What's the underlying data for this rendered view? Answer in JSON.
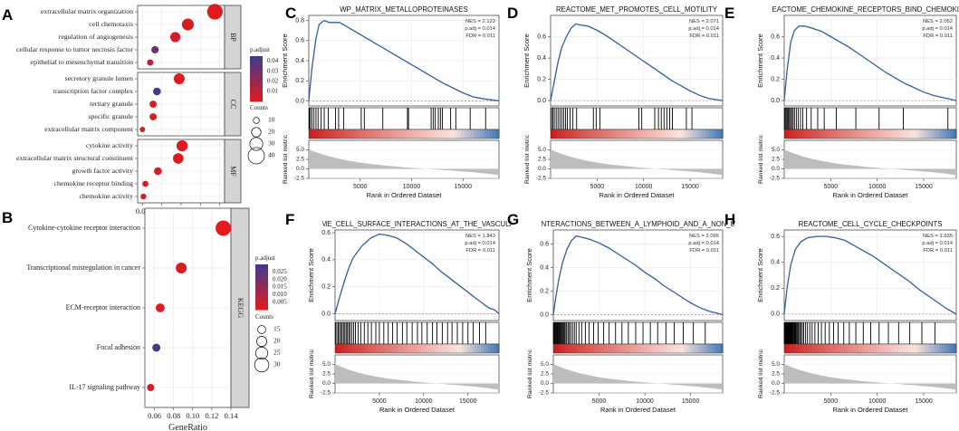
{
  "figure": {
    "panel_letters": [
      "A",
      "B",
      "C",
      "D",
      "E",
      "F",
      "G",
      "H"
    ]
  },
  "chart_data": [
    {
      "id": "A",
      "type": "scatter",
      "subtype": "dot-plot",
      "title": "",
      "xlabel": "GeneRatio",
      "ylabel": "",
      "xlim": [
        0.015,
        0.105
      ],
      "xticks": [
        0.02,
        0.04,
        0.06,
        0.08,
        0.1
      ],
      "xtick_labels": [
        "0.02",
        "0.04",
        "0.06",
        "0.08",
        "0.10"
      ],
      "colorbar": {
        "title": "p.adjust",
        "range": [
          0.0,
          0.045
        ],
        "ticks": [
          0.01,
          0.02,
          0.03,
          0.04
        ],
        "tick_labels": [
          "0.01",
          "0.02",
          "0.03",
          "0.04"
        ],
        "low_color": "#e41a1c",
        "high_color": "#3d3c8f"
      },
      "size_legend": {
        "title": "Counts",
        "values": [
          10,
          20,
          30,
          40
        ]
      },
      "facets": [
        {
          "label": "BP",
          "points": [
            {
              "term": "extracellular matrix organization",
              "ratio": 0.095,
              "count": 38,
              "padj": 0.001
            },
            {
              "term": "cell chemotaxis",
              "ratio": 0.067,
              "count": 27,
              "padj": 0.003
            },
            {
              "term": "regulation of angiogenesis",
              "ratio": 0.054,
              "count": 22,
              "padj": 0.006
            },
            {
              "term": "cellular response to tumor necrosis factor",
              "ratio": 0.033,
              "count": 14,
              "padj": 0.032
            },
            {
              "term": "epithelial to mesenchymal transition",
              "ratio": 0.028,
              "count": 11,
              "padj": 0.012
            }
          ]
        },
        {
          "label": "CC",
          "points": [
            {
              "term": "secretory granule lumen",
              "ratio": 0.058,
              "count": 24,
              "padj": 0.002
            },
            {
              "term": "transcription factor complex",
              "ratio": 0.035,
              "count": 15,
              "padj": 0.043
            },
            {
              "term": "tertiary granule",
              "ratio": 0.031,
              "count": 13,
              "padj": 0.004
            },
            {
              "term": "specific granule",
              "ratio": 0.031,
              "count": 13,
              "padj": 0.004
            },
            {
              "term": "extracellular matrix component",
              "ratio": 0.02,
              "count": 8,
              "padj": 0.006
            }
          ]
        },
        {
          "label": "MF",
          "points": [
            {
              "term": "cytokine activity",
              "ratio": 0.061,
              "count": 25,
              "padj": 0.002
            },
            {
              "term": "extracellular matrix structural constituent",
              "ratio": 0.057,
              "count": 23,
              "padj": 0.003
            },
            {
              "term": "growth factor activity",
              "ratio": 0.036,
              "count": 15,
              "padj": 0.005
            },
            {
              "term": "chemokine receptor binding",
              "ratio": 0.023,
              "count": 10,
              "padj": 0.004
            },
            {
              "term": "chemokine activity",
              "ratio": 0.021,
              "count": 9,
              "padj": 0.006
            }
          ]
        }
      ]
    },
    {
      "id": "B",
      "type": "scatter",
      "subtype": "dot-plot",
      "title": "",
      "xlabel": "GeneRatio",
      "ylabel": "",
      "xlim": [
        0.05,
        0.14
      ],
      "xticks": [
        0.06,
        0.08,
        0.1,
        0.12,
        0.14
      ],
      "xtick_labels": [
        "0.06",
        "0.08",
        "0.10",
        "0.12",
        "0.14"
      ],
      "colorbar": {
        "title": "p.adjust",
        "range": [
          0.0,
          0.03
        ],
        "ticks": [
          0.005,
          0.01,
          0.015,
          0.02,
          0.025
        ],
        "tick_labels": [
          "0.005",
          "0.010",
          "0.015",
          "0.020",
          "0.025"
        ],
        "low_color": "#e41a1c",
        "high_color": "#3d3c8f"
      },
      "size_legend": {
        "title": "Counts",
        "values": [
          15,
          20,
          25,
          30
        ]
      },
      "facets": [
        {
          "label": "KEGG",
          "points": [
            {
              "term": "Cytokine-cytokine receptor interaction",
              "ratio": 0.132,
              "count": 33,
              "padj": 0.0005
            },
            {
              "term": "Transcriptional misregulation in cancer",
              "ratio": 0.088,
              "count": 22,
              "padj": 0.002
            },
            {
              "term": "ECM-receptor interaction",
              "ratio": 0.066,
              "count": 17,
              "padj": 0.001
            },
            {
              "term": "Focal adhesion",
              "ratio": 0.062,
              "count": 15,
              "padj": 0.028
            },
            {
              "term": "IL-17 signaling pathway",
              "ratio": 0.056,
              "count": 13,
              "padj": 0.003
            }
          ]
        }
      ]
    },
    {
      "id": "C",
      "type": "line",
      "subtype": "gsea",
      "title": "WP_MATRIX_METALLOPROTEINASES",
      "stats": [
        "NES = 2.122",
        "p.adj = 0.014",
        "FDR = 0.011"
      ],
      "ylabel": "Enrichment Score",
      "ylim": [
        -0.05,
        0.85
      ],
      "yticks": [
        0.0,
        0.2,
        0.4,
        0.6,
        0.8
      ],
      "ytick_labels": [
        "0.0",
        "0.2",
        "0.4",
        "0.6",
        "0.8"
      ],
      "es_curve": {
        "x": [
          0,
          300,
          700,
          1000,
          1500,
          2000,
          3000,
          4000,
          5000,
          6000,
          7000,
          8000,
          9000,
          10000,
          11000,
          12000,
          13000,
          14000,
          15000,
          16000,
          17000,
          17800,
          18500
        ],
        "y": [
          0.0,
          0.32,
          0.62,
          0.76,
          0.8,
          0.78,
          0.78,
          0.72,
          0.66,
          0.6,
          0.54,
          0.48,
          0.42,
          0.36,
          0.3,
          0.24,
          0.18,
          0.13,
          0.08,
          0.04,
          0.02,
          0.01,
          0.0
        ]
      },
      "hits": [
        50,
        150,
        300,
        500,
        700,
        900,
        1200,
        1500,
        1900,
        2600,
        2900,
        3400,
        5100,
        5400,
        7200,
        9600,
        9700,
        11900,
        12100,
        12300,
        12600,
        12800,
        13000,
        13800,
        14300,
        15700,
        17200
      ],
      "xlabel": "Rank in Ordered Dataset",
      "xlim": [
        0,
        18500
      ],
      "xticks": [
        5000,
        10000,
        15000
      ],
      "xtick_labels": [
        "5000",
        "10000",
        "15000"
      ],
      "metric_label": "Ranked list metric",
      "metric_ylim": [
        -2.5,
        7.5
      ],
      "metric_yticks": [
        -2.5,
        0.0,
        2.5,
        5.0
      ],
      "metric_ytick_labels": [
        "-2.5",
        "0.0",
        "2.5",
        "5.0"
      ]
    },
    {
      "id": "D",
      "type": "line",
      "subtype": "gsea",
      "title": "REACTOME_MET_PROMOTES_CELL_MOTILITY",
      "stats": [
        "NES = 2.071",
        "p.adj = 0.014",
        "FDR = 0.011"
      ],
      "ylabel": "Enrichment Score",
      "ylim": [
        -0.05,
        0.8
      ],
      "yticks": [
        0.0,
        0.2,
        0.4,
        0.6
      ],
      "ytick_labels": [
        "0.0",
        "0.2",
        "0.4",
        "0.6"
      ],
      "es_curve": {
        "x": [
          0,
          400,
          800,
          1200,
          1700,
          2200,
          2700,
          3200,
          4000,
          5000,
          6000,
          7000,
          8000,
          9000,
          10000,
          11000,
          12000,
          13000,
          14000,
          15000,
          16000,
          17000,
          18500
        ],
        "y": [
          0.0,
          0.18,
          0.36,
          0.5,
          0.6,
          0.68,
          0.72,
          0.71,
          0.7,
          0.66,
          0.61,
          0.55,
          0.49,
          0.43,
          0.37,
          0.31,
          0.25,
          0.19,
          0.14,
          0.09,
          0.05,
          0.02,
          0.0
        ]
      },
      "hits": [
        100,
        250,
        400,
        600,
        800,
        1000,
        1200,
        1400,
        1600,
        1800,
        2100,
        2400,
        2800,
        4600,
        4900,
        5300,
        9500,
        9800,
        11200,
        11600,
        11900,
        12200,
        12500,
        12800,
        13100,
        14600,
        15200
      ],
      "xlabel": "Rank in Ordered Dataset",
      "xlim": [
        0,
        18500
      ],
      "xticks": [
        5000,
        10000,
        15000
      ],
      "xtick_labels": [
        "5000",
        "10000",
        "15000"
      ],
      "metric_label": "Ranked list metric",
      "metric_ylim": [
        -2.5,
        7.5
      ],
      "metric_yticks": [
        -2.5,
        0.0,
        2.5,
        5.0
      ],
      "metric_ytick_labels": [
        "-2.5",
        "0.0",
        "2.5",
        "5.0"
      ]
    },
    {
      "id": "E",
      "type": "line",
      "subtype": "gsea",
      "title": "REACTOME_CHEMOKINE_RECEPTORS_BIND_CHEMOKINES",
      "stats": [
        "NES = 2.052",
        "p.adj = 0.014",
        "FDR = 0.011"
      ],
      "ylabel": "Enrichment Score",
      "ylim": [
        -0.05,
        0.8
      ],
      "yticks": [
        0.0,
        0.2,
        0.4,
        0.6
      ],
      "ytick_labels": [
        "0.0",
        "0.2",
        "0.4",
        "0.6"
      ],
      "es_curve": {
        "x": [
          0,
          300,
          700,
          1100,
          1600,
          2200,
          3000,
          4000,
          5000,
          6000,
          7000,
          8000,
          9000,
          10000,
          11000,
          12000,
          13000,
          14000,
          15000,
          16000,
          17000,
          18000,
          18500
        ],
        "y": [
          0.0,
          0.28,
          0.55,
          0.66,
          0.7,
          0.7,
          0.68,
          0.65,
          0.6,
          0.55,
          0.5,
          0.44,
          0.38,
          0.32,
          0.26,
          0.21,
          0.16,
          0.12,
          0.08,
          0.05,
          0.03,
          0.01,
          0.0
        ]
      },
      "hits": [
        40,
        120,
        220,
        330,
        450,
        560,
        680,
        800,
        950,
        1100,
        1300,
        1500,
        1750,
        2000,
        2400,
        2900,
        3600,
        4300,
        5600,
        7700,
        10200,
        12800,
        17600
      ],
      "xlabel": "Rank in Ordered Dataset",
      "xlim": [
        0,
        18500
      ],
      "xticks": [
        5000,
        10000,
        15000
      ],
      "xtick_labels": [
        "5000",
        "10000",
        "15000"
      ],
      "metric_label": "Ranked list metric",
      "metric_ylim": [
        -2.5,
        7.5
      ],
      "metric_yticks": [
        -2.5,
        0.0,
        2.5,
        5.0
      ],
      "metric_ytick_labels": [
        "-2.5",
        "0.0",
        "2.5",
        "5.0"
      ]
    },
    {
      "id": "F",
      "type": "line",
      "subtype": "gsea",
      "title": "REACTOME_CELL_SURFACE_INTERACTIONS_AT_THE_VASCULAR_WALL",
      "stats": [
        "NES = 1.843",
        "p.adj = 0.014",
        "FDR = 0.011"
      ],
      "ylabel": "Enrichment Score",
      "ylim": [
        -0.05,
        0.62
      ],
      "yticks": [
        0.0,
        0.2,
        0.4,
        0.6
      ],
      "ytick_labels": [
        "0.0",
        "0.2",
        "0.4",
        "0.6"
      ],
      "es_curve": {
        "x": [
          0,
          500,
          1000,
          1500,
          2000,
          3000,
          4000,
          5000,
          6000,
          7000,
          8000,
          9000,
          10000,
          11000,
          12000,
          13000,
          14000,
          15000,
          16000,
          17000,
          17500,
          18000,
          18500
        ],
        "y": [
          0.0,
          0.12,
          0.23,
          0.33,
          0.41,
          0.5,
          0.56,
          0.59,
          0.58,
          0.56,
          0.52,
          0.47,
          0.42,
          0.37,
          0.31,
          0.26,
          0.21,
          0.16,
          0.11,
          0.06,
          0.04,
          0.03,
          0.0
        ]
      },
      "hits": [
        50,
        200,
        350,
        500,
        650,
        800,
        950,
        1100,
        1250,
        1400,
        1550,
        1700,
        1900,
        2100,
        2300,
        2600,
        2900,
        3300,
        3700,
        4100,
        4600,
        5000,
        5500,
        6000,
        6500,
        7000,
        7600,
        8100,
        8700,
        9300,
        9800,
        10400,
        11000,
        11500,
        12100,
        12700,
        13200,
        13800,
        14400,
        15000,
        15600,
        16300,
        17000
      ],
      "xlabel": "Rank in Ordered Dataset",
      "xlim": [
        0,
        18500
      ],
      "xticks": [
        5000,
        10000,
        15000
      ],
      "xtick_labels": [
        "5000",
        "10000",
        "15000"
      ],
      "metric_label": "Ranked list metric",
      "metric_ylim": [
        -2.5,
        7.5
      ],
      "metric_yticks": [
        -2.5,
        0.0,
        2.5,
        5.0
      ],
      "metric_ytick_labels": [
        "-2.5",
        "0.0",
        "2.5",
        "5.0"
      ]
    },
    {
      "id": "G",
      "type": "line",
      "subtype": "gsea",
      "title": "REGULATORY_INTERACTIONS_BETWEEN_A_LYMPHOID_AND_A_NON_LYMPHOID_CELL",
      "stats": [
        "NES = 2.095",
        "p.adj = 0.014",
        "FDR = 0.011"
      ],
      "ylabel": "Enrichment Score",
      "ylim": [
        -0.05,
        0.72
      ],
      "yticks": [
        0.0,
        0.2,
        0.4,
        0.6
      ],
      "ytick_labels": [
        "0.0",
        "0.2",
        "0.4",
        "0.6"
      ],
      "es_curve": {
        "x": [
          0,
          300,
          600,
          1000,
          1500,
          2000,
          2500,
          3000,
          4000,
          5000,
          6000,
          7000,
          8000,
          9000,
          10000,
          11000,
          12000,
          13000,
          14000,
          15000,
          16000,
          17000,
          18500
        ],
        "y": [
          0.0,
          0.16,
          0.3,
          0.44,
          0.56,
          0.63,
          0.67,
          0.66,
          0.64,
          0.61,
          0.57,
          0.52,
          0.47,
          0.42,
          0.36,
          0.31,
          0.25,
          0.2,
          0.15,
          0.1,
          0.06,
          0.03,
          0.0
        ]
      },
      "hits": [
        30,
        100,
        170,
        240,
        320,
        400,
        480,
        560,
        640,
        720,
        800,
        900,
        1000,
        1100,
        1200,
        1300,
        1450,
        1600,
        1750,
        1900,
        2100,
        2300,
        2500,
        2800,
        3100,
        3500,
        3900,
        4400,
        4900,
        5500,
        6100,
        6800,
        7500,
        8200,
        9000,
        9800,
        10600,
        11400,
        12300,
        13200,
        14200,
        15300,
        16600
      ],
      "xlabel": "Rank in Ordered Dataset",
      "xlim": [
        0,
        18500
      ],
      "xticks": [
        5000,
        10000,
        15000
      ],
      "xtick_labels": [
        "5000",
        "10000",
        "15000"
      ],
      "metric_label": "Ranked list metric",
      "metric_ylim": [
        -2.5,
        7.5
      ],
      "metric_yticks": [
        -2.5,
        0.0,
        2.5,
        5.0
      ],
      "metric_ytick_labels": [
        "-2.5",
        "0.0",
        "2.5",
        "5.0"
      ]
    },
    {
      "id": "H",
      "type": "line",
      "subtype": "gsea",
      "title": "REACTOME_CELL_CYCLE_CHECKPOINTS",
      "stats": [
        "NES = 1.935",
        "p.adj = 0.014",
        "FDR = 0.011"
      ],
      "ylabel": "Enrichment Score",
      "ylim": [
        -0.05,
        0.65
      ],
      "yticks": [
        0.0,
        0.2,
        0.4,
        0.6
      ],
      "ytick_labels": [
        "0.0",
        "0.2",
        "0.4",
        "0.6"
      ],
      "es_curve": {
        "x": [
          0,
          300,
          700,
          1200,
          1800,
          2500,
          3500,
          4500,
          5500,
          6500,
          7500,
          8500,
          9500,
          10500,
          11500,
          12500,
          13500,
          14500,
          15500,
          16500,
          17500,
          18000,
          18500
        ],
        "y": [
          0.0,
          0.2,
          0.38,
          0.5,
          0.56,
          0.59,
          0.6,
          0.6,
          0.59,
          0.57,
          0.53,
          0.49,
          0.45,
          0.4,
          0.35,
          0.3,
          0.25,
          0.19,
          0.14,
          0.09,
          0.04,
          0.02,
          0.0
        ]
      },
      "hits": [
        20,
        60,
        100,
        140,
        180,
        220,
        260,
        300,
        350,
        400,
        450,
        500,
        560,
        620,
        680,
        740,
        800,
        870,
        940,
        1010,
        1090,
        1170,
        1250,
        1350,
        1450,
        1550,
        1670,
        1800,
        1950,
        2100,
        2300,
        2500,
        2750,
        3000,
        3300,
        3650,
        4000,
        4400,
        4850,
        5300,
        5800,
        6400,
        7000,
        7700,
        8500,
        9300,
        10200,
        11200,
        12300,
        13500,
        14800,
        16200
      ],
      "xlabel": "Rank in Ordered Dataset",
      "xlim": [
        0,
        18500
      ],
      "xticks": [
        5000,
        10000,
        15000
      ],
      "xtick_labels": [
        "5000",
        "10000",
        "15000"
      ],
      "metric_label": "Ranked list metric",
      "metric_ylim": [
        -2.5,
        7.5
      ],
      "metric_yticks": [
        -2.5,
        0.0,
        2.5,
        5.0
      ],
      "metric_ytick_labels": [
        "-2.5",
        "0.0",
        "2.5",
        "5.0"
      ]
    }
  ]
}
